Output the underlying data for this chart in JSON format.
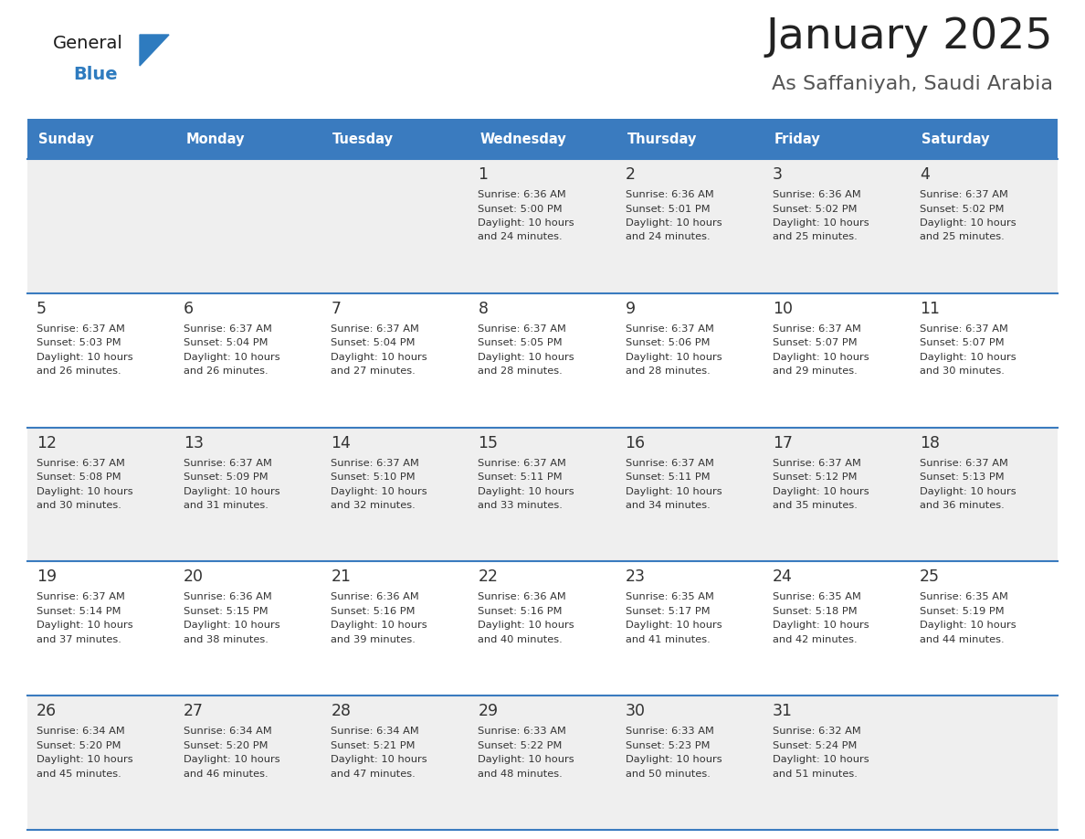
{
  "title": "January 2025",
  "subtitle": "As Saffaniyah, Saudi Arabia",
  "header_color": "#3a7bbf",
  "header_text_color": "#ffffff",
  "day_names": [
    "Sunday",
    "Monday",
    "Tuesday",
    "Wednesday",
    "Thursday",
    "Friday",
    "Saturday"
  ],
  "title_color": "#222222",
  "subtitle_color": "#555555",
  "line_color": "#3a7bbf",
  "cell_bg_row0": "#efefef",
  "cell_bg_row1": "#ffffff",
  "cell_bg_row2": "#efefef",
  "cell_bg_row3": "#ffffff",
  "cell_bg_row4": "#efefef",
  "day_num_color": "#333333",
  "info_color": "#333333",
  "logo_general_color": "#1a1a1a",
  "logo_blue_color": "#2e7bbf",
  "days": [
    {
      "date": 1,
      "col": 3,
      "row": 0,
      "sunrise": "6:36 AM",
      "sunset": "5:00 PM",
      "daylight": "10 hours and 24 minutes."
    },
    {
      "date": 2,
      "col": 4,
      "row": 0,
      "sunrise": "6:36 AM",
      "sunset": "5:01 PM",
      "daylight": "10 hours and 24 minutes."
    },
    {
      "date": 3,
      "col": 5,
      "row": 0,
      "sunrise": "6:36 AM",
      "sunset": "5:02 PM",
      "daylight": "10 hours and 25 minutes."
    },
    {
      "date": 4,
      "col": 6,
      "row": 0,
      "sunrise": "6:37 AM",
      "sunset": "5:02 PM",
      "daylight": "10 hours and 25 minutes."
    },
    {
      "date": 5,
      "col": 0,
      "row": 1,
      "sunrise": "6:37 AM",
      "sunset": "5:03 PM",
      "daylight": "10 hours and 26 minutes."
    },
    {
      "date": 6,
      "col": 1,
      "row": 1,
      "sunrise": "6:37 AM",
      "sunset": "5:04 PM",
      "daylight": "10 hours and 26 minutes."
    },
    {
      "date": 7,
      "col": 2,
      "row": 1,
      "sunrise": "6:37 AM",
      "sunset": "5:04 PM",
      "daylight": "10 hours and 27 minutes."
    },
    {
      "date": 8,
      "col": 3,
      "row": 1,
      "sunrise": "6:37 AM",
      "sunset": "5:05 PM",
      "daylight": "10 hours and 28 minutes."
    },
    {
      "date": 9,
      "col": 4,
      "row": 1,
      "sunrise": "6:37 AM",
      "sunset": "5:06 PM",
      "daylight": "10 hours and 28 minutes."
    },
    {
      "date": 10,
      "col": 5,
      "row": 1,
      "sunrise": "6:37 AM",
      "sunset": "5:07 PM",
      "daylight": "10 hours and 29 minutes."
    },
    {
      "date": 11,
      "col": 6,
      "row": 1,
      "sunrise": "6:37 AM",
      "sunset": "5:07 PM",
      "daylight": "10 hours and 30 minutes."
    },
    {
      "date": 12,
      "col": 0,
      "row": 2,
      "sunrise": "6:37 AM",
      "sunset": "5:08 PM",
      "daylight": "10 hours and 30 minutes."
    },
    {
      "date": 13,
      "col": 1,
      "row": 2,
      "sunrise": "6:37 AM",
      "sunset": "5:09 PM",
      "daylight": "10 hours and 31 minutes."
    },
    {
      "date": 14,
      "col": 2,
      "row": 2,
      "sunrise": "6:37 AM",
      "sunset": "5:10 PM",
      "daylight": "10 hours and 32 minutes."
    },
    {
      "date": 15,
      "col": 3,
      "row": 2,
      "sunrise": "6:37 AM",
      "sunset": "5:11 PM",
      "daylight": "10 hours and 33 minutes."
    },
    {
      "date": 16,
      "col": 4,
      "row": 2,
      "sunrise": "6:37 AM",
      "sunset": "5:11 PM",
      "daylight": "10 hours and 34 minutes."
    },
    {
      "date": 17,
      "col": 5,
      "row": 2,
      "sunrise": "6:37 AM",
      "sunset": "5:12 PM",
      "daylight": "10 hours and 35 minutes."
    },
    {
      "date": 18,
      "col": 6,
      "row": 2,
      "sunrise": "6:37 AM",
      "sunset": "5:13 PM",
      "daylight": "10 hours and 36 minutes."
    },
    {
      "date": 19,
      "col": 0,
      "row": 3,
      "sunrise": "6:37 AM",
      "sunset": "5:14 PM",
      "daylight": "10 hours and 37 minutes."
    },
    {
      "date": 20,
      "col": 1,
      "row": 3,
      "sunrise": "6:36 AM",
      "sunset": "5:15 PM",
      "daylight": "10 hours and 38 minutes."
    },
    {
      "date": 21,
      "col": 2,
      "row": 3,
      "sunrise": "6:36 AM",
      "sunset": "5:16 PM",
      "daylight": "10 hours and 39 minutes."
    },
    {
      "date": 22,
      "col": 3,
      "row": 3,
      "sunrise": "6:36 AM",
      "sunset": "5:16 PM",
      "daylight": "10 hours and 40 minutes."
    },
    {
      "date": 23,
      "col": 4,
      "row": 3,
      "sunrise": "6:35 AM",
      "sunset": "5:17 PM",
      "daylight": "10 hours and 41 minutes."
    },
    {
      "date": 24,
      "col": 5,
      "row": 3,
      "sunrise": "6:35 AM",
      "sunset": "5:18 PM",
      "daylight": "10 hours and 42 minutes."
    },
    {
      "date": 25,
      "col": 6,
      "row": 3,
      "sunrise": "6:35 AM",
      "sunset": "5:19 PM",
      "daylight": "10 hours and 44 minutes."
    },
    {
      "date": 26,
      "col": 0,
      "row": 4,
      "sunrise": "6:34 AM",
      "sunset": "5:20 PM",
      "daylight": "10 hours and 45 minutes."
    },
    {
      "date": 27,
      "col": 1,
      "row": 4,
      "sunrise": "6:34 AM",
      "sunset": "5:20 PM",
      "daylight": "10 hours and 46 minutes."
    },
    {
      "date": 28,
      "col": 2,
      "row": 4,
      "sunrise": "6:34 AM",
      "sunset": "5:21 PM",
      "daylight": "10 hours and 47 minutes."
    },
    {
      "date": 29,
      "col": 3,
      "row": 4,
      "sunrise": "6:33 AM",
      "sunset": "5:22 PM",
      "daylight": "10 hours and 48 minutes."
    },
    {
      "date": 30,
      "col": 4,
      "row": 4,
      "sunrise": "6:33 AM",
      "sunset": "5:23 PM",
      "daylight": "10 hours and 50 minutes."
    },
    {
      "date": 31,
      "col": 5,
      "row": 4,
      "sunrise": "6:32 AM",
      "sunset": "5:24 PM",
      "daylight": "10 hours and 51 minutes."
    }
  ]
}
